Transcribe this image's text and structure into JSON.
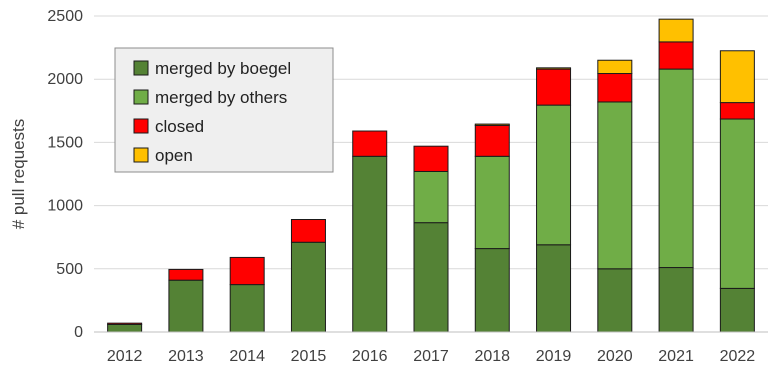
{
  "chart_data": {
    "type": "bar",
    "stacked": true,
    "title": "",
    "xlabel": "",
    "ylabel": "# pull requests",
    "ylim": [
      0,
      2500
    ],
    "yticks": [
      0,
      500,
      1000,
      1500,
      2000,
      2500
    ],
    "grid": true,
    "legend_position": "top-left",
    "categories": [
      "2012",
      "2013",
      "2014",
      "2015",
      "2016",
      "2017",
      "2018",
      "2019",
      "2020",
      "2021",
      "2022"
    ],
    "series": [
      {
        "name": "merged by boegel",
        "color": "#548235",
        "values": [
          60,
          410,
          375,
          710,
          1390,
          865,
          660,
          690,
          500,
          510,
          345
        ]
      },
      {
        "name": "merged by others",
        "color": "#70ad47",
        "values": [
          0,
          0,
          0,
          0,
          0,
          405,
          730,
          1105,
          1320,
          1570,
          1340
        ]
      },
      {
        "name": "closed",
        "color": "#ff0000",
        "values": [
          10,
          85,
          215,
          180,
          200,
          200,
          245,
          285,
          225,
          215,
          130
        ]
      },
      {
        "name": "open",
        "color": "#ffc000",
        "values": [
          0,
          0,
          0,
          0,
          0,
          0,
          10,
          10,
          105,
          180,
          410
        ]
      }
    ]
  }
}
